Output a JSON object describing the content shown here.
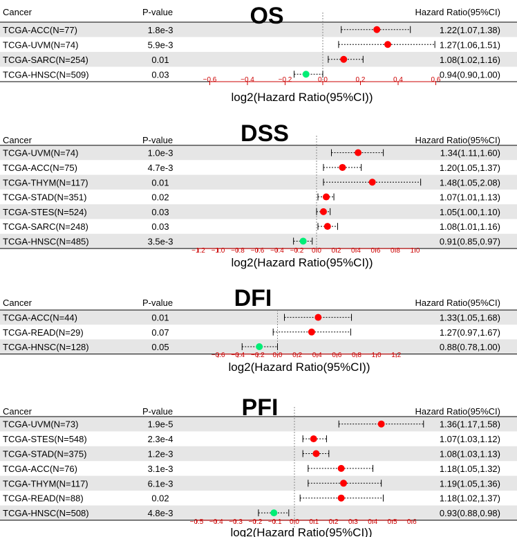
{
  "chart_data": [
    {
      "type": "forest",
      "title": "OS",
      "columns": {
        "cancer": "Cancer",
        "pvalue": "P-value",
        "hr": "Hazard Ratio(95%CI)"
      },
      "xlabel": "log2(Hazard Ratio(95%CI))",
      "xlim": [
        -0.65,
        0.65
      ],
      "ticks": [
        -0.6,
        -0.4,
        -0.2,
        0.0,
        0.2,
        0.4,
        0.6
      ],
      "tick_labels": [
        "−0.6",
        "−0.4",
        "−0.2",
        "0.0",
        "0.2",
        "0.4",
        "0.6"
      ],
      "rows": [
        {
          "cancer": "TCGA-ACC(N=77)",
          "pvalue": "1.8e-3",
          "hr_text": "1.22(1.07,1.38)",
          "log2hr": 0.287,
          "lo": 0.098,
          "hi": 0.465,
          "color": "#ff0000"
        },
        {
          "cancer": "TCGA-UVM(N=74)",
          "pvalue": "5.9e-3",
          "hr_text": "1.27(1.06,1.51)",
          "log2hr": 0.345,
          "lo": 0.084,
          "hi": 0.595,
          "color": "#ff0000"
        },
        {
          "cancer": "TCGA-SARC(N=254)",
          "pvalue": "0.01",
          "hr_text": "1.08(1.02,1.16)",
          "log2hr": 0.111,
          "lo": 0.029,
          "hi": 0.214,
          "color": "#ff0000"
        },
        {
          "cancer": "TCGA-HNSC(N=509)",
          "pvalue": "0.03",
          "hr_text": "0.94(0.90,1.00)",
          "log2hr": -0.089,
          "lo": -0.152,
          "hi": 0.0,
          "color": "#00ee76"
        }
      ]
    },
    {
      "type": "forest",
      "title": "DSS",
      "columns": {
        "cancer": "Cancer",
        "pvalue": "P-value",
        "hr": "Hazard Ratio(95%CI)"
      },
      "xlabel": "log2(Hazard Ratio(95%CI))",
      "xlim": [
        -1.3,
        1.1
      ],
      "ticks": [
        -1.2,
        -1.0,
        -0.8,
        -0.6,
        -0.4,
        -0.2,
        0.0,
        0.2,
        0.4,
        0.6,
        0.8,
        1.0
      ],
      "tick_labels": [
        "−1.2",
        "−1.0",
        "−0.8",
        "−0.6",
        "−0.4",
        "−0.2",
        "0.0",
        "0.2",
        "0.4",
        "0.6",
        "0.8",
        "1.0"
      ],
      "rows": [
        {
          "cancer": "TCGA-UVM(N=74)",
          "pvalue": "1.0e-3",
          "hr_text": "1.34(1.11,1.60)",
          "log2hr": 0.422,
          "lo": 0.151,
          "hi": 0.678,
          "color": "#ff0000"
        },
        {
          "cancer": "TCGA-ACC(N=75)",
          "pvalue": "4.7e-3",
          "hr_text": "1.20(1.05,1.37)",
          "log2hr": 0.263,
          "lo": 0.07,
          "hi": 0.454,
          "color": "#ff0000"
        },
        {
          "cancer": "TCGA-THYM(N=117)",
          "pvalue": "0.01",
          "hr_text": "1.48(1.05,2.08)",
          "log2hr": 0.566,
          "lo": 0.07,
          "hi": 1.057,
          "color": "#ff0000"
        },
        {
          "cancer": "TCGA-STAD(N=351)",
          "pvalue": "0.02",
          "hr_text": "1.07(1.01,1.13)",
          "log2hr": 0.098,
          "lo": 0.014,
          "hi": 0.176,
          "color": "#ff0000"
        },
        {
          "cancer": "TCGA-STES(N=524)",
          "pvalue": "0.03",
          "hr_text": "1.05(1.00,1.10)",
          "log2hr": 0.07,
          "lo": 0.0,
          "hi": 0.138,
          "color": "#ff0000"
        },
        {
          "cancer": "TCGA-SARC(N=248)",
          "pvalue": "0.03",
          "hr_text": "1.08(1.01,1.16)",
          "log2hr": 0.111,
          "lo": 0.014,
          "hi": 0.214,
          "color": "#ff0000"
        },
        {
          "cancer": "TCGA-HNSC(N=485)",
          "pvalue": "3.5e-3",
          "hr_text": "0.91(0.85,0.97)",
          "log2hr": -0.136,
          "lo": -0.234,
          "hi": -0.044,
          "color": "#00ee76"
        }
      ]
    },
    {
      "type": "forest",
      "title": "DFI",
      "columns": {
        "cancer": "Cancer",
        "pvalue": "P-value",
        "hr": "Hazard Ratio(95%CI)"
      },
      "xlabel": "log2(Hazard Ratio(95%CI))",
      "xlim": [
        -0.8,
        1.3
      ],
      "ticks": [
        -0.6,
        -0.4,
        -0.2,
        0.0,
        0.2,
        0.4,
        0.6,
        0.8,
        1.0,
        1.2
      ],
      "tick_labels": [
        "−0.6",
        "−0.4",
        "−0.2",
        "0.0",
        "0.2",
        "0.4",
        "0.6",
        "0.8",
        "1.0",
        "1.2"
      ],
      "rows": [
        {
          "cancer": "TCGA-ACC(N=44)",
          "pvalue": "0.01",
          "hr_text": "1.33(1.05,1.68)",
          "log2hr": 0.411,
          "lo": 0.07,
          "hi": 0.748,
          "color": "#ff0000"
        },
        {
          "cancer": "TCGA-READ(N=29)",
          "pvalue": "0.07",
          "hr_text": "1.27(0.97,1.67)",
          "log2hr": 0.345,
          "lo": -0.044,
          "hi": 0.74,
          "color": "#ff0000"
        },
        {
          "cancer": "TCGA-HNSC(N=128)",
          "pvalue": "0.05",
          "hr_text": "0.88(0.78,1.00)",
          "log2hr": -0.184,
          "lo": -0.358,
          "hi": 0.0,
          "color": "#00ee76"
        }
      ]
    },
    {
      "type": "forest",
      "title": "PFI",
      "columns": {
        "cancer": "Cancer",
        "pvalue": "P-value",
        "hr": "Hazard Ratio(95%CI)"
      },
      "xlabel": "log2(Hazard Ratio(95%CI))",
      "xlim": [
        -0.55,
        0.67
      ],
      "ticks": [
        -0.5,
        -0.4,
        -0.3,
        -0.2,
        -0.1,
        0.0,
        0.1,
        0.2,
        0.3,
        0.4,
        0.5,
        0.6
      ],
      "tick_labels": [
        "−0.5",
        "−0.4",
        "−0.3",
        "−0.2",
        "−0.1",
        "0.0",
        "0.1",
        "0.2",
        "0.3",
        "0.4",
        "0.5",
        "0.6"
      ],
      "rows": [
        {
          "cancer": "TCGA-UVM(N=73)",
          "pvalue": "1.9e-5",
          "hr_text": "1.36(1.17,1.58)",
          "log2hr": 0.444,
          "lo": 0.227,
          "hi": 0.66,
          "color": "#ff0000"
        },
        {
          "cancer": "TCGA-STES(N=548)",
          "pvalue": "2.3e-4",
          "hr_text": "1.07(1.03,1.12)",
          "log2hr": 0.098,
          "lo": 0.043,
          "hi": 0.164,
          "color": "#ff0000"
        },
        {
          "cancer": "TCGA-STAD(N=375)",
          "pvalue": "1.2e-3",
          "hr_text": "1.08(1.03,1.13)",
          "log2hr": 0.111,
          "lo": 0.043,
          "hi": 0.176,
          "color": "#ff0000"
        },
        {
          "cancer": "TCGA-ACC(N=76)",
          "pvalue": "3.1e-3",
          "hr_text": "1.18(1.05,1.32)",
          "log2hr": 0.239,
          "lo": 0.07,
          "hi": 0.401,
          "color": "#ff0000"
        },
        {
          "cancer": "TCGA-THYM(N=117)",
          "pvalue": "6.1e-3",
          "hr_text": "1.19(1.05,1.36)",
          "log2hr": 0.251,
          "lo": 0.07,
          "hi": 0.444,
          "color": "#ff0000"
        },
        {
          "cancer": "TCGA-READ(N=88)",
          "pvalue": "0.02",
          "hr_text": "1.18(1.02,1.37)",
          "log2hr": 0.239,
          "lo": 0.029,
          "hi": 0.454,
          "color": "#ff0000"
        },
        {
          "cancer": "TCGA-HNSC(N=508)",
          "pvalue": "4.8e-3",
          "hr_text": "0.93(0.88,0.98)",
          "log2hr": -0.105,
          "lo": -0.184,
          "hi": -0.029,
          "color": "#00ee76"
        }
      ]
    }
  ]
}
